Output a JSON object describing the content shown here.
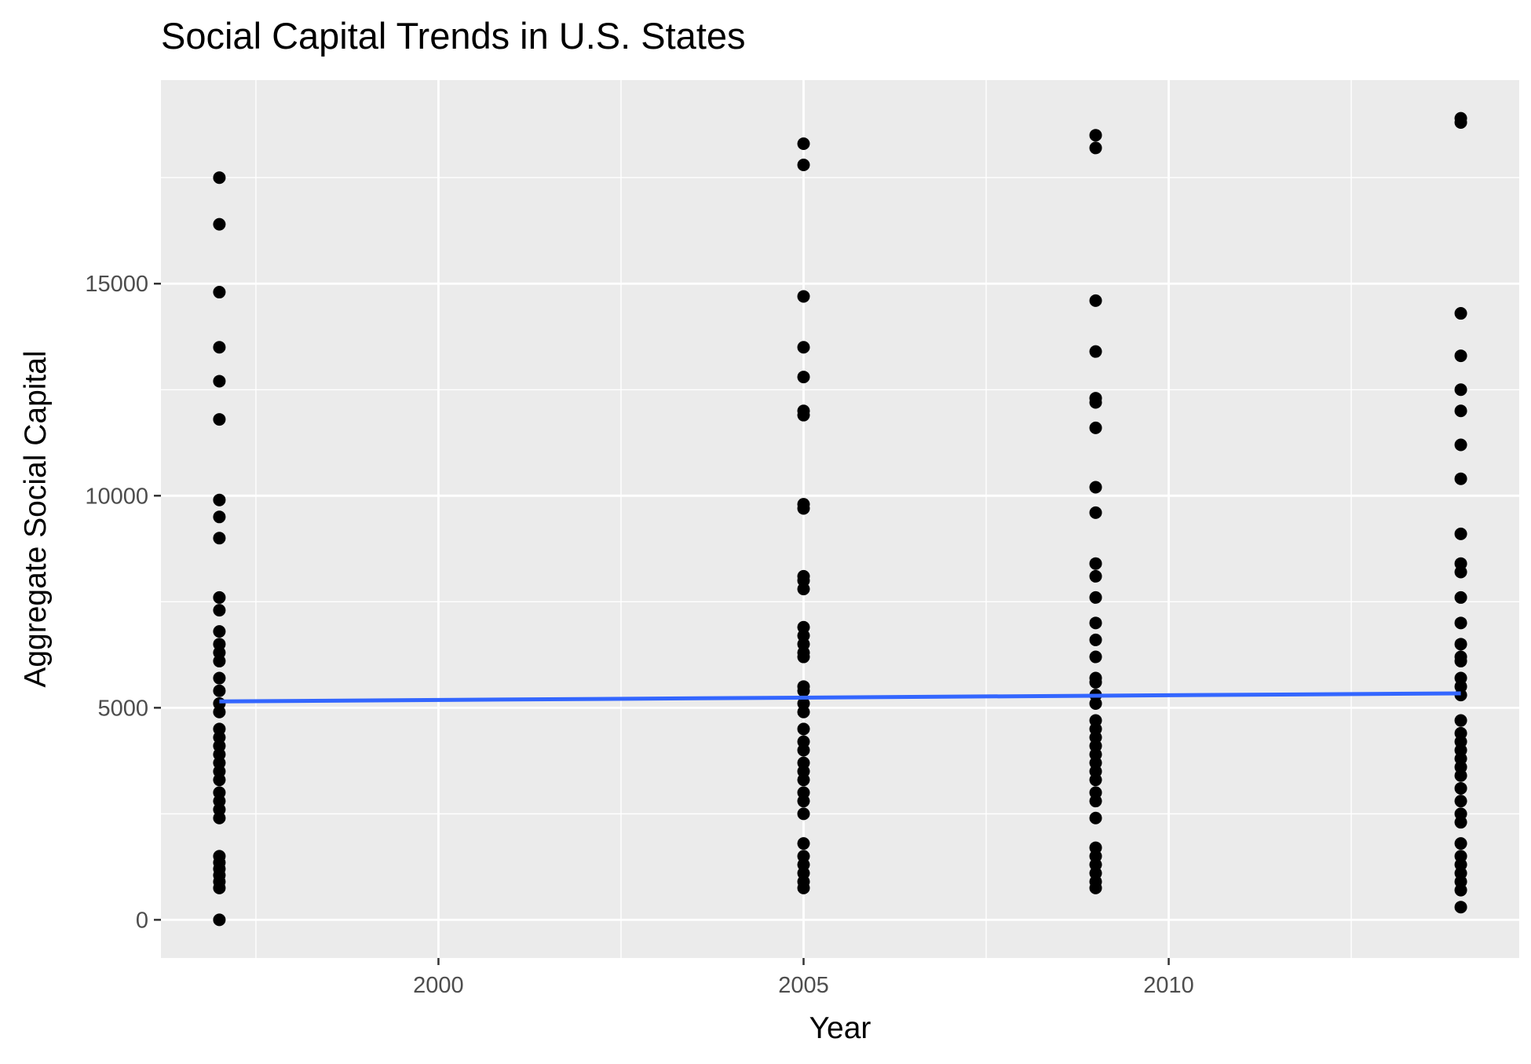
{
  "chart_data": {
    "type": "scatter",
    "title": "Social Capital Trends in U.S. States",
    "xlabel": "Year",
    "ylabel": "Aggregate Social Capital",
    "xlim": [
      1996.2,
      2014.8
    ],
    "ylim": [
      -900,
      19800
    ],
    "x_ticks": [
      2000,
      2005,
      2010
    ],
    "x_minor_ticks": [
      1997.5,
      2002.5,
      2007.5,
      2012.5
    ],
    "y_ticks": [
      0,
      5000,
      10000,
      15000
    ],
    "y_minor_ticks": [
      2500,
      7500,
      12500,
      17500
    ],
    "grid": true,
    "colors": {
      "panel_background": "#ebebeb",
      "grid": "#ffffff",
      "points": "#000000",
      "trend_line": "#3366ff"
    },
    "series": [
      {
        "kind": "points",
        "groups": [
          {
            "x": 1997,
            "y": [
              17500,
              16400,
              14800,
              13500,
              12700,
              11800,
              9900,
              9500,
              9000,
              7600,
              7300,
              6800,
              6500,
              6300,
              6100,
              5700,
              5400,
              5100,
              4900,
              4500,
              4300,
              4100,
              3900,
              3700,
              3500,
              3300,
              3000,
              2800,
              2600,
              2400,
              1500,
              1350,
              1200,
              1050,
              900,
              750,
              0
            ]
          },
          {
            "x": 2005,
            "y": [
              18300,
              17800,
              14700,
              13500,
              12800,
              12000,
              11900,
              9800,
              9700,
              8100,
              8000,
              7800,
              6900,
              6700,
              6500,
              6300,
              6200,
              5500,
              5400,
              5100,
              4900,
              4500,
              4200,
              4000,
              3700,
              3500,
              3300,
              3000,
              2800,
              2500,
              1800,
              1500,
              1300,
              1100,
              900,
              750
            ]
          },
          {
            "x": 2009,
            "y": [
              18500,
              18200,
              14600,
              13400,
              12300,
              12200,
              11600,
              10200,
              9600,
              8400,
              8100,
              7600,
              7000,
              6600,
              6200,
              5700,
              5600,
              5300,
              5100,
              4700,
              4500,
              4300,
              4100,
              3900,
              3700,
              3500,
              3300,
              3000,
              2800,
              2400,
              1700,
              1500,
              1300,
              1100,
              900,
              750
            ]
          },
          {
            "x": 2014,
            "y": [
              18900,
              18800,
              14300,
              13300,
              12500,
              12000,
              11200,
              10400,
              9100,
              8400,
              8200,
              7600,
              7000,
              6500,
              6200,
              6100,
              5700,
              5500,
              5300,
              4700,
              4400,
              4200,
              4000,
              3800,
              3600,
              3400,
              3100,
              2800,
              2500,
              2300,
              1800,
              1500,
              1300,
              1100,
              900,
              700,
              300
            ]
          }
        ]
      },
      {
        "kind": "trend_line",
        "x": [
          1997,
          2014
        ],
        "y": [
          5150,
          5340
        ]
      }
    ]
  }
}
